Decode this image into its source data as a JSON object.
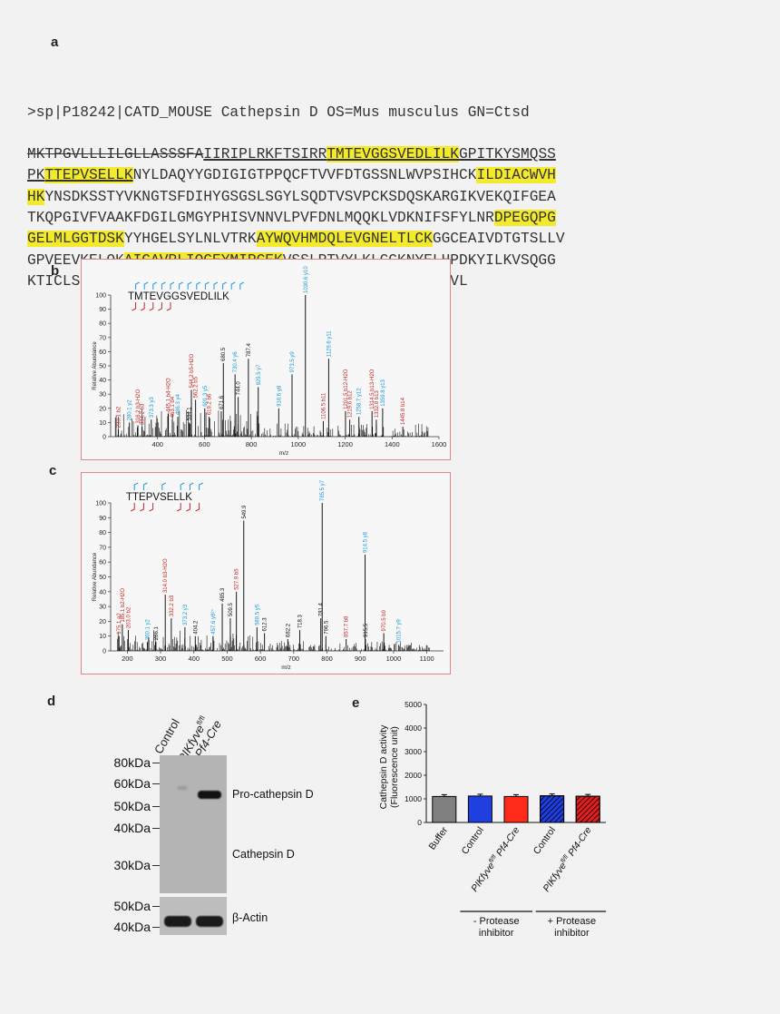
{
  "panels": {
    "a": "a",
    "b": "b",
    "c": "c",
    "d": "d",
    "e": "e"
  },
  "sequence": {
    "header": ">sp|P18242|CATD_MOUSE Cathepsin D OS=Mus musculus GN=Ctsd",
    "lines": [
      [
        {
          "t": "MKTPGVLLLILGLLASSSFA",
          "s": "strike"
        },
        {
          "t": "IIRIPLRKFTSIRR",
          "s": "ul"
        },
        {
          "t": "TMTEVGGSVEDLILK",
          "s": "hlul"
        },
        {
          "t": "GPITKYSMQSS",
          "s": "ul"
        }
      ],
      [
        {
          "t": "PK",
          "s": "ul"
        },
        {
          "t": "TTEPVSELLK",
          "s": "hlul"
        },
        {
          "t": "NYLDAQYYGDIGIGTPPQCFTVVFDTGSSNLWVPSIHCK",
          "s": ""
        },
        {
          "t": "ILDIACWVH",
          "s": "hl"
        }
      ],
      [
        {
          "t": "HK",
          "s": "hl"
        },
        {
          "t": "YNSDKSSTYVKNGTSFDIHYGSGSLSGYLSQDTVSVPCKSDQSKARGIKVEKQIFGEA",
          "s": ""
        }
      ],
      [
        {
          "t": "TKQPGIVFVAAKFDGILGMGYPHISVNNVLPVFDNLMQQKLVDKNIFSFYLNR",
          "s": ""
        },
        {
          "t": "DPEGQPG",
          "s": "hl"
        }
      ],
      [
        {
          "t": "GELMLGGTDSK",
          "s": "hl"
        },
        {
          "t": "YYHGELSYLNLVTRK",
          "s": ""
        },
        {
          "t": "AYWQVHMDQLEVGNELTLCK",
          "s": "hl"
        },
        {
          "t": "GGCEAIVDTGTSLLV",
          "s": ""
        }
      ],
      [
        {
          "t": "GPVEEVKELQK",
          "s": ""
        },
        {
          "t": "AIGAVPLIQGEYMIPCEK",
          "s": "hl"
        },
        {
          "t": "VSSLPTVYLKLGGKNYELHPDKYILKVSQGG",
          "s": ""
        }
      ],
      [
        {
          "t": "KTICLSGFMGMDIPPPSGPLWILGDVFIGSYYTVFDRDNNRVGFANAVVL",
          "s": ""
        }
      ]
    ]
  },
  "spectrum_b": {
    "peptide": "TMTEVGGSVEDLILK",
    "ylabel": "Relative Abundance",
    "xlabel": "m/z",
    "yticks": [
      "0",
      "10",
      "20",
      "30",
      "40",
      "50",
      "60",
      "70",
      "80",
      "90",
      "100"
    ],
    "xticks": [
      "400",
      "600",
      "800",
      "1000",
      "1200",
      "1400",
      "1600"
    ]
  },
  "spectrum_c": {
    "peptide": "TTEPVSELLK",
    "ylabel": "Relative Abundance",
    "xlabel": "m/z",
    "yticks": [
      "0",
      "10",
      "20",
      "30",
      "40",
      "50",
      "60",
      "70",
      "80",
      "90",
      "100"
    ],
    "xticks": [
      "200",
      "300",
      "400",
      "500",
      "600",
      "700",
      "800",
      "900",
      "1000",
      "1100"
    ]
  },
  "chart_data": [
    {
      "type": "bar",
      "title": "",
      "xlabel": "m/z",
      "ylabel": "Relative Abundance",
      "xlim": [
        200,
        1600
      ],
      "ylim": [
        0,
        100
      ],
      "peptide": "TMTEVGGSVEDLILK",
      "peaks": [
        {
          "mz": 233.1,
          "int": 5,
          "label": "233.1 b2",
          "color": "#c62828"
        },
        {
          "mz": 280.1,
          "int": 10,
          "label": "280.1 y2",
          "color": "#1a9bd7"
        },
        {
          "mz": 316.2,
          "int": 8,
          "label": "316.2 b3-H2O",
          "color": "#c62828"
        },
        {
          "mz": 334.2,
          "int": 7,
          "label": "334.2 b3",
          "color": "#c62828"
        },
        {
          "mz": 373.3,
          "int": 12,
          "label": "373.3 y3",
          "color": "#1a9bd7"
        },
        {
          "mz": 445.1,
          "int": 16,
          "label": "445.1 b4-H2O",
          "color": "#c62828"
        },
        {
          "mz": 463.1,
          "int": 12,
          "label": "463.1 b4",
          "color": "#c62828"
        },
        {
          "mz": 486.3,
          "int": 14,
          "label": "486.3 y4",
          "color": "#1a9bd7"
        },
        {
          "mz": 534.1,
          "int": 10,
          "label": "534.1",
          "color": "#111111"
        },
        {
          "mz": 544.2,
          "int": 33,
          "label": "544.2 b5-H2O",
          "color": "#c62828"
        },
        {
          "mz": 562.2,
          "int": 26,
          "label": "562.2 b5",
          "color": "#c62828"
        },
        {
          "mz": 601.3,
          "int": 20,
          "label": "601.3 y5",
          "color": "#1a9bd7"
        },
        {
          "mz": 619.2,
          "int": 14,
          "label": "619.2 b6",
          "color": "#c62828"
        },
        {
          "mz": 671.6,
          "int": 18,
          "label": "671.6",
          "color": "#111111"
        },
        {
          "mz": 680.5,
          "int": 52,
          "label": "680.5",
          "color": "#111111"
        },
        {
          "mz": 730.4,
          "int": 44,
          "label": "730.4 y6",
          "color": "#1a9bd7"
        },
        {
          "mz": 744.0,
          "int": 28,
          "label": "744.0",
          "color": "#111111"
        },
        {
          "mz": 787.4,
          "int": 55,
          "label": "787.4",
          "color": "#111111"
        },
        {
          "mz": 829.5,
          "int": 35,
          "label": "829.5 y7",
          "color": "#1a9bd7"
        },
        {
          "mz": 916.6,
          "int": 20,
          "label": "916.6 y8",
          "color": "#1a9bd7"
        },
        {
          "mz": 973.5,
          "int": 44,
          "label": "973.5 y9",
          "color": "#1a9bd7"
        },
        {
          "mz": 1030.6,
          "int": 100,
          "label": "1030.6 y10",
          "color": "#1a9bd7"
        },
        {
          "mz": 1106.5,
          "int": 11,
          "label": "1106.5 b11",
          "color": "#c62828"
        },
        {
          "mz": 1129.6,
          "int": 55,
          "label": "1129.6 y11",
          "color": "#1a9bd7"
        },
        {
          "mz": 1201.5,
          "int": 18,
          "label": "1201.5 b12-H2O",
          "color": "#c62828"
        },
        {
          "mz": 1219.6,
          "int": 12,
          "label": "1219.6 b12",
          "color": "#c62828"
        },
        {
          "mz": 1258.7,
          "int": 14,
          "label": "1258.7 y12",
          "color": "#1a9bd7"
        },
        {
          "mz": 1314.5,
          "int": 18,
          "label": "1314.5 b13-H2O",
          "color": "#c62828"
        },
        {
          "mz": 1332.8,
          "int": 12,
          "label": "1332.8 b13",
          "color": "#c62828"
        },
        {
          "mz": 1359.8,
          "int": 20,
          "label": "1359.8 y13",
          "color": "#1a9bd7"
        },
        {
          "mz": 1445.8,
          "int": 7,
          "label": "1445.8 b14",
          "color": "#c62828"
        }
      ]
    },
    {
      "type": "bar",
      "title": "",
      "xlabel": "m/z",
      "ylabel": "Relative Abundance",
      "xlim": [
        150,
        1150
      ],
      "ylim": [
        0,
        100
      ],
      "peptide": "TTEPVSELLK",
      "peaks": [
        {
          "mz": 175.1,
          "int": 10,
          "label": "175.1 a2",
          "color": "#c62828"
        },
        {
          "mz": 185.1,
          "int": 18,
          "label": "185.1 b2-H2O",
          "color": "#c62828"
        },
        {
          "mz": 203.0,
          "int": 14,
          "label": "203.0 b2",
          "color": "#c62828"
        },
        {
          "mz": 260.1,
          "int": 6,
          "label": "260.1 y2",
          "color": "#1a9bd7"
        },
        {
          "mz": 286.1,
          "int": 6,
          "label": "286.1",
          "color": "#111111"
        },
        {
          "mz": 314.0,
          "int": 38,
          "label": "314.0 b3-H2O",
          "color": "#c62828"
        },
        {
          "mz": 332.2,
          "int": 22,
          "label": "332.2 b3",
          "color": "#c62828"
        },
        {
          "mz": 373.2,
          "int": 16,
          "label": "373.2 y3",
          "color": "#1a9bd7"
        },
        {
          "mz": 404.2,
          "int": 10,
          "label": "404.2",
          "color": "#111111"
        },
        {
          "mz": 457.6,
          "int": 10,
          "label": "457.6 y8²⁺",
          "color": "#1a9bd7"
        },
        {
          "mz": 485.3,
          "int": 32,
          "label": "485.3",
          "color": "#111111"
        },
        {
          "mz": 509.5,
          "int": 22,
          "label": "509.5",
          "color": "#111111"
        },
        {
          "mz": 527.9,
          "int": 40,
          "label": "527.9 b5",
          "color": "#c62828"
        },
        {
          "mz": 549.9,
          "int": 88,
          "label": "549.9",
          "color": "#111111"
        },
        {
          "mz": 589.5,
          "int": 16,
          "label": "589.5 y5",
          "color": "#1a9bd7"
        },
        {
          "mz": 612.3,
          "int": 12,
          "label": "612.3",
          "color": "#111111"
        },
        {
          "mz": 682.2,
          "int": 8,
          "label": "682.2",
          "color": "#111111"
        },
        {
          "mz": 718.3,
          "int": 14,
          "label": "718.3",
          "color": "#111111"
        },
        {
          "mz": 781.4,
          "int": 22,
          "label": "781.4",
          "color": "#111111"
        },
        {
          "mz": 785.5,
          "int": 100,
          "label": "785.5 y7",
          "color": "#1a9bd7"
        },
        {
          "mz": 796.5,
          "int": 10,
          "label": "796.5",
          "color": "#111111"
        },
        {
          "mz": 857.7,
          "int": 8,
          "label": "857.7 b8",
          "color": "#c62828"
        },
        {
          "mz": 914.5,
          "int": 65,
          "label": "914.5 y8",
          "color": "#1a9bd7"
        },
        {
          "mz": 915.5,
          "int": 8,
          "label": "915.5",
          "color": "#111111"
        },
        {
          "mz": 970.5,
          "int": 12,
          "label": "970.5 b9",
          "color": "#c62828"
        },
        {
          "mz": 1015.7,
          "int": 4,
          "label": "1015.7 y9",
          "color": "#1a9bd7"
        }
      ]
    },
    {
      "type": "bar",
      "title": "",
      "ylabel": "Cathepsin D activity (Fluorescence unit)",
      "ylim": [
        0,
        5000
      ],
      "yticks": [
        "0",
        "1000",
        "2000",
        "3000",
        "4000",
        "5000"
      ],
      "categories": [
        "Buffer",
        "Control",
        "PIKfyve fl/fl Pf4-Cre",
        "Control",
        "PIKfyve fl/fl Pf4-Cre"
      ],
      "values": [
        1100,
        1120,
        1100,
        1130,
        1110
      ],
      "colors": [
        "#808080",
        "#1f3fe0",
        "#ff2a1a",
        "#1f3fe0",
        "#e02020"
      ],
      "hatched": [
        false,
        false,
        false,
        true,
        true
      ],
      "groups": [
        {
          "label": "- Protease inhibitor",
          "range": [
            1,
            2
          ]
        },
        {
          "label": "+ Protease inhibitor",
          "range": [
            3,
            4
          ]
        }
      ]
    }
  ],
  "blot": {
    "columns": [
      "Control",
      "PIKfyve fl/fl Pf4-Cre"
    ],
    "col_control": "Control",
    "col_ko_gene": "PIKfyve",
    "col_ko_sup": "fl/fl",
    "col_ko_cre": "Pf4-Cre",
    "markers_top": [
      "80kDa",
      "60kDa",
      "50kDa",
      "40kDa",
      "30kDa"
    ],
    "markers_bottom": [
      "50kDa",
      "40kDa"
    ],
    "band_labels": [
      "Pro-cathepsin D",
      "Cathepsin D",
      "β-Actin"
    ]
  },
  "panel_e": {
    "ylabel1": "Cathepsin D activity",
    "ylabel2": "(Fluorescence unit)",
    "cat_buffer": "Buffer",
    "cat_control": "Control",
    "cat_ko": "PIKfyve",
    "cat_ko_sup": "fl/fl",
    "cat_ko_cre": "Pf4-Cre",
    "group1": [
      "- Protease",
      "inhibitor"
    ],
    "group2": [
      "+ Protease",
      "inhibitor"
    ]
  }
}
